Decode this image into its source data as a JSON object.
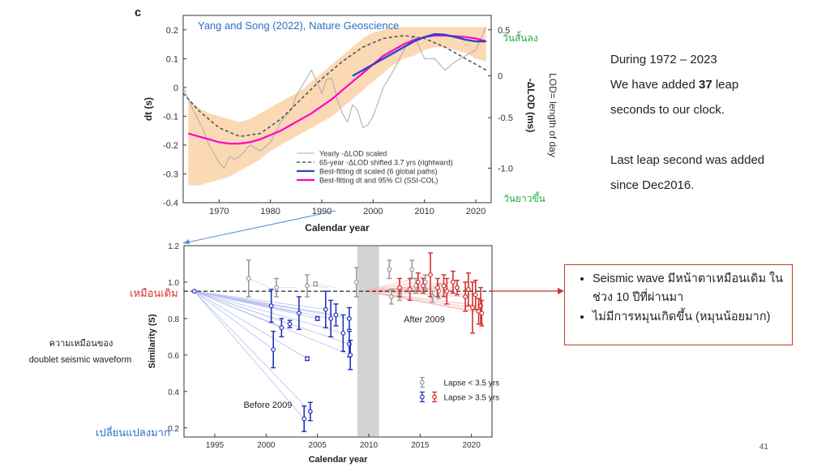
{
  "slide": {
    "panel_letter": "c",
    "notes": {
      "line1": "During 1972 – 2023",
      "line2_pre": "We have added ",
      "line2_num": "37",
      "line2_post": " leap",
      "line3": "seconds to our clock.",
      "line4": "Last leap second was added",
      "line5": "since Dec2016."
    },
    "callout": {
      "bullet1": "Seismic wave มีหน้าตาเหมือนเดิม ในช่วง 10 ปีที่ผ่านมา",
      "bullet2": "ไม่มีการหมุนเกิดขึ้น (หมุนน้อยมาก)"
    },
    "left_labels": {
      "similarity_desc_1": "ความเหมือนของ",
      "similarity_desc_2": "doublet seismic waveform",
      "same_label": "เหมือนเดิม",
      "changed_label": "เปลี่ยนแปลงมาก"
    },
    "page_number": "41",
    "colors": {
      "red": "#d32f2f",
      "blue": "#2a47c4",
      "green": "#27a84a",
      "magenta": "#ff00cc",
      "band": "#fbd9b5"
    }
  },
  "chart_data": [
    {
      "type": "line",
      "title": "Yang and Song (2022), Nature Geoscience",
      "xlabel": "Calendar year",
      "ylabel": "dt (s)",
      "ylabel_right": "-ΔLOD (ms)",
      "ylabel_right_outer": "LOD= length of day",
      "annotation_top_right": "วันสั้นลง",
      "annotation_bottom_right": "วันยาวขึ้น",
      "xlim": [
        1963,
        2023
      ],
      "ylim": [
        -0.4,
        0.25
      ],
      "xticks": [
        1970,
        1980,
        1990,
        2000,
        2010,
        2020
      ],
      "xtick_labels": [
        "1970",
        "1980",
        "1990",
        "2000",
        "2010",
        "2020"
      ],
      "yticks": [
        -0.4,
        -0.3,
        -0.2,
        -0.1,
        0,
        0.1,
        0.2
      ],
      "ytick_labels": [
        "-0.4",
        "-0.3",
        "-0.2",
        "-0.1",
        "0",
        "0.1",
        "0.2"
      ],
      "right_ticks": [
        -1.0,
        -0.5,
        0,
        0.5
      ],
      "right_tick_labels": [
        "-1.0",
        "-0.5",
        "0",
        "0.5"
      ],
      "right_tick_dt": [
        -0.28,
        -0.105,
        0.04,
        0.2
      ],
      "legend": [
        "Yearly -ΔLOD scaled",
        "65-year -ΔLOD shifted 3.7 yrs (rightward)",
        "Best-fitting dt scaled (6 global paths)",
        "Best-fitting dt and 95% CI (SSI-COL)"
      ],
      "series": [
        {
          "name": "Yearly -ΔLOD scaled",
          "x": [
            1963,
            1965,
            1967,
            1968,
            1970,
            1971,
            1972,
            1973,
            1974,
            1976,
            1978,
            1980,
            1982,
            1984,
            1985,
            1986,
            1987,
            1988,
            1989,
            1990,
            1991,
            1992,
            1993,
            1994,
            1995,
            1996,
            1997,
            1998,
            1999,
            2000,
            2002,
            2004,
            2006,
            2008,
            2010,
            2012,
            2014,
            2016,
            2018,
            2020,
            2022
          ],
          "y": [
            0.0,
            -0.08,
            -0.15,
            -0.2,
            -0.26,
            -0.28,
            -0.24,
            -0.25,
            -0.24,
            -0.2,
            -0.22,
            -0.19,
            -0.12,
            -0.08,
            -0.03,
            0.0,
            0.03,
            0.06,
            0.02,
            -0.02,
            0.03,
            0.03,
            -0.04,
            -0.09,
            -0.12,
            -0.06,
            -0.08,
            -0.14,
            -0.13,
            -0.1,
            0.0,
            0.06,
            0.13,
            0.18,
            0.1,
            0.1,
            0.06,
            0.09,
            0.11,
            0.13,
            0.21
          ]
        },
        {
          "name": "65-year -ΔLOD shifted 3.7 yrs (rightward)",
          "x": [
            1963,
            1966,
            1970,
            1974,
            1978,
            1982,
            1986,
            1990,
            1994,
            1998,
            2002,
            2006,
            2010,
            2014,
            2018,
            2022
          ],
          "y": [
            -0.02,
            -0.08,
            -0.14,
            -0.17,
            -0.16,
            -0.11,
            -0.04,
            0.03,
            0.09,
            0.14,
            0.17,
            0.18,
            0.17,
            0.14,
            0.1,
            0.06
          ]
        },
        {
          "name": "Best-fitting dt scaled (6 global paths)",
          "x": [
            1996,
            1998,
            2000,
            2002,
            2004,
            2006,
            2008,
            2010,
            2012,
            2014,
            2016,
            2018,
            2020,
            2022
          ],
          "y": [
            0.04,
            0.06,
            0.08,
            0.1,
            0.12,
            0.14,
            0.16,
            0.175,
            0.185,
            0.183,
            0.175,
            0.166,
            0.16,
            0.16
          ]
        },
        {
          "name": "Best-fitting dt and 95% CI (SSI-COL)",
          "x": [
            1964,
            1966,
            1968,
            1970,
            1972,
            1974,
            1976,
            1978,
            1980,
            1982,
            1984,
            1986,
            1988,
            1990,
            1992,
            1994,
            1996,
            1998,
            2000,
            2002,
            2004,
            2006,
            2008,
            2010,
            2012,
            2014,
            2016,
            2018,
            2020,
            2022
          ],
          "y": [
            -0.16,
            -0.17,
            -0.18,
            -0.19,
            -0.195,
            -0.195,
            -0.19,
            -0.18,
            -0.165,
            -0.15,
            -0.13,
            -0.11,
            -0.09,
            -0.065,
            -0.04,
            -0.01,
            0.02,
            0.05,
            0.08,
            0.11,
            0.13,
            0.15,
            0.165,
            0.175,
            0.18,
            0.18,
            0.178,
            0.175,
            0.17,
            0.16
          ],
          "ci_lower": [
            -0.34,
            -0.34,
            -0.33,
            -0.32,
            -0.31,
            -0.29,
            -0.27,
            -0.25,
            -0.22,
            -0.2,
            -0.18,
            -0.16,
            -0.14,
            -0.12,
            -0.1,
            -0.07,
            -0.04,
            -0.01,
            0.02,
            0.05,
            0.08,
            0.1,
            0.11,
            0.13,
            0.14,
            0.14,
            0.13,
            0.12,
            0.1,
            0.09
          ],
          "ci_upper": [
            -0.04,
            -0.07,
            -0.09,
            -0.1,
            -0.11,
            -0.12,
            -0.11,
            -0.09,
            -0.07,
            -0.05,
            -0.03,
            -0.01,
            0.02,
            0.05,
            0.08,
            0.11,
            0.14,
            0.17,
            0.19,
            0.2,
            0.21,
            0.21,
            0.21,
            0.21,
            0.21,
            0.21,
            0.21,
            0.21,
            0.21,
            0.21
          ]
        }
      ]
    },
    {
      "type": "scatter",
      "xlabel": "Calendar year",
      "ylabel": "Similarity (S)",
      "xlim": [
        1992,
        2022
      ],
      "ylim": [
        0.15,
        1.2
      ],
      "xticks": [
        1995,
        2000,
        2005,
        2010,
        2015,
        2020
      ],
      "xtick_labels": [
        "1995",
        "2000",
        "2005",
        "2010",
        "2015",
        "2020"
      ],
      "yticks": [
        0.2,
        0.4,
        0.6,
        0.8,
        1.0,
        1.2
      ],
      "ytick_labels": [
        "0.2",
        "0.4",
        "0.6",
        "0.8",
        "1.0",
        "1.2"
      ],
      "reference_line": 0.95,
      "shaded_region": [
        2008.9,
        2011
      ],
      "labels": {
        "before": "Before 2009",
        "after": "After 2009"
      },
      "legend": [
        "Lapse < 3.5 yrs",
        "Lapse > 3.5 yrs"
      ],
      "series": [
        {
          "name": "Lapse < 3.5 yrs (gray, before 2009)",
          "x": [
            1998.3,
            2001,
            2004,
            2004.8,
            2008.8
          ],
          "y": [
            1.02,
            0.97,
            0.98,
            0.99,
            1.0
          ],
          "err": [
            0.1,
            0.05,
            0.06,
            0.01,
            0.08
          ]
        },
        {
          "name": "Lapse > 3.5 yrs (blue)",
          "x": [
            1993,
            2000.5,
            2000.7,
            2001.5,
            2002.3,
            2003.2,
            2003.7,
            2004,
            2004.3,
            2005,
            2005.8,
            2006.3,
            2006.8,
            2007.5,
            2008.1,
            2008.1,
            2008.2
          ],
          "y": [
            0.95,
            0.87,
            0.63,
            0.75,
            0.77,
            0.83,
            0.25,
            0.58,
            0.29,
            0.8,
            0.85,
            0.8,
            0.82,
            0.72,
            0.8,
            0.66,
            0.6
          ],
          "err": [
            0.0,
            0.09,
            0.1,
            0.05,
            0.02,
            0.09,
            0.07,
            0.01,
            0.05,
            0.01,
            0.1,
            0.1,
            0.06,
            0.1,
            0.06,
            0.07,
            0.08
          ]
        },
        {
          "name": "Lapse < 3.5 yrs (gray, after 2009)",
          "x": [
            2012,
            2012.2,
            2013,
            2014.2,
            2014.6,
            2015.5,
            2016.2,
            2016.8
          ],
          "y": [
            1.07,
            0.92,
            0.93,
            1.07,
            0.98,
            1.0,
            0.92,
            0.95
          ],
          "err": [
            0.05,
            0.04,
            0.03,
            0.05,
            0.04,
            0.04,
            0.03,
            0.04
          ]
        },
        {
          "name": "Lapse > 3.5 yrs (red, after 2009)",
          "x": [
            2013,
            2014,
            2014.8,
            2015.3,
            2016,
            2016.7,
            2017.3,
            2017.6,
            2018.2,
            2018.6,
            2019.4,
            2019.7,
            2020.1,
            2020.4,
            2020.7,
            2020.9,
            2021
          ],
          "y": [
            0.97,
            0.96,
            1.0,
            0.98,
            1.04,
            0.97,
            0.98,
            0.95,
            1.0,
            0.97,
            0.92,
            0.96,
            0.86,
            0.93,
            0.84,
            0.87,
            0.83
          ],
          "err": [
            0.05,
            0.06,
            0.05,
            0.04,
            0.12,
            0.05,
            0.06,
            0.07,
            0.06,
            0.04,
            0.08,
            0.09,
            0.14,
            0.08,
            0.07,
            0.1,
            0.07
          ]
        }
      ]
    }
  ]
}
